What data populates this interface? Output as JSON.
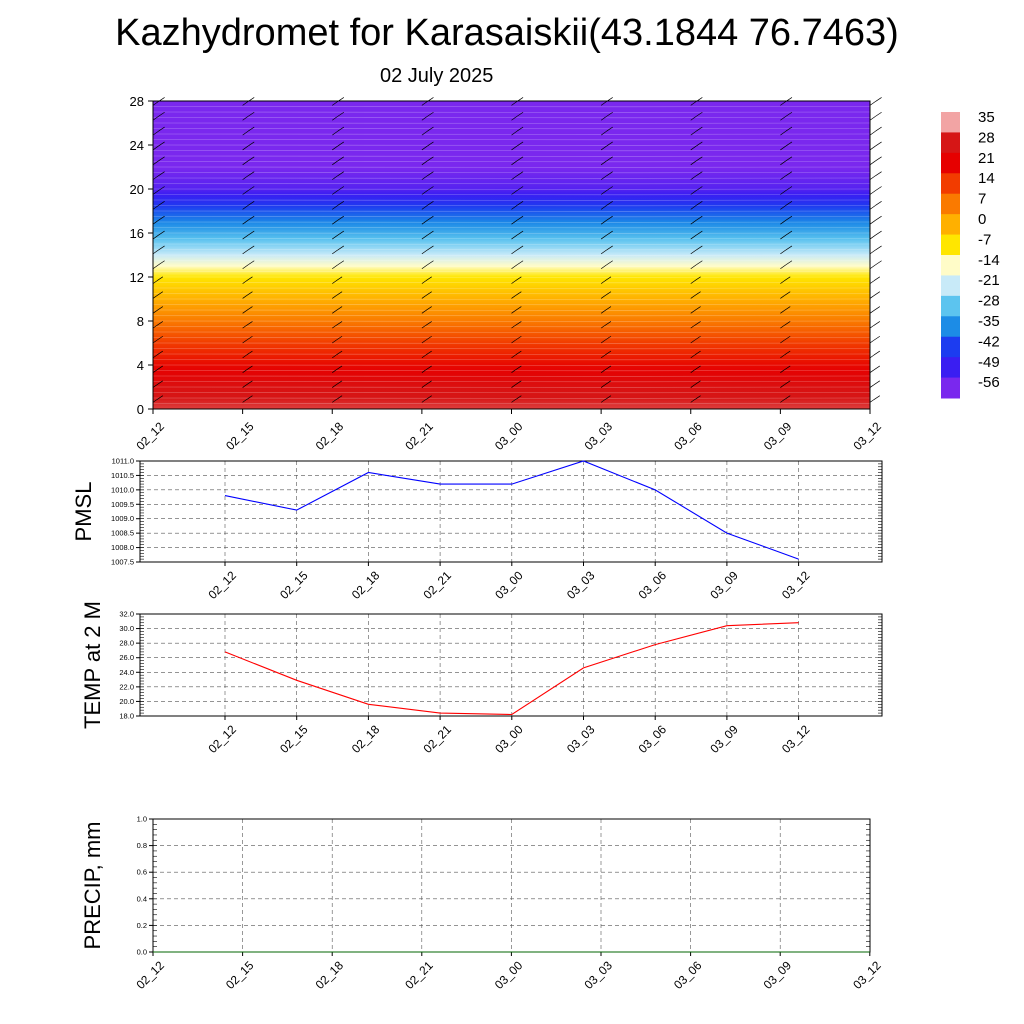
{
  "header": {
    "title": "Kazhydromet for Karasaiskii(43.1844 76.7463)",
    "subtitle": "02 July 2025"
  },
  "chart_data": [
    {
      "type": "heatmap",
      "title": "",
      "ylabel": "",
      "ylim": [
        0,
        28
      ],
      "yticks": [
        "0",
        "4",
        "8",
        "12",
        "16",
        "20",
        "24",
        "28"
      ],
      "x": [
        "02_12",
        "02_15",
        "02_18",
        "02_21",
        "03_00",
        "03_03",
        "03_06",
        "03_09",
        "03_12"
      ],
      "colorbar": {
        "labels": [
          "35",
          "28",
          "21",
          "14",
          "7",
          "0",
          "-7",
          "-14",
          "-21",
          "-28",
          "-35",
          "-42",
          "-49",
          "-56"
        ],
        "colors": [
          "#f2a4a4",
          "#d61616",
          "#e60000",
          "#f23c00",
          "#fa7a00",
          "#ffb000",
          "#ffe600",
          "#fffcc8",
          "#c8eaf8",
          "#5cc4ef",
          "#1c8ce6",
          "#1c3cf0",
          "#3a1ef2",
          "#7a28ee"
        ]
      },
      "temperature_by_height": {
        "heights": [
          0,
          2,
          4,
          6,
          8,
          10,
          12,
          13,
          14,
          16,
          18,
          20,
          22,
          24,
          28
        ],
        "values": [
          30,
          26,
          20,
          14,
          7,
          0,
          -7,
          -14,
          -21,
          -31,
          -40,
          -52,
          -56,
          -58,
          -60
        ]
      },
      "grid": false
    },
    {
      "type": "line",
      "ylabel": "PMSL",
      "ylim": [
        1007.5,
        1011.0
      ],
      "yticks": [
        "1007.5",
        "1008.0",
        "1008.5",
        "1009.0",
        "1009.5",
        "1010.0",
        "1010.5",
        "1011.0"
      ],
      "x": [
        "02_12",
        "02_15",
        "02_18",
        "02_21",
        "03_00",
        "03_03",
        "03_06",
        "03_09",
        "03_12"
      ],
      "series": [
        {
          "values": [
            1009.8,
            1009.3,
            1010.6,
            1010.2,
            1010.2,
            1011.0,
            1010.0,
            1008.5,
            1007.6
          ],
          "color": "#0000ff"
        }
      ],
      "grid": true
    },
    {
      "type": "line",
      "ylabel": "TEMP at 2 M",
      "ylim": [
        18.0,
        32.0
      ],
      "yticks": [
        "18.0",
        "20.0",
        "22.0",
        "24.0",
        "26.0",
        "28.0",
        "30.0",
        "32.0"
      ],
      "x": [
        "02_12",
        "02_15",
        "02_18",
        "02_21",
        "03_00",
        "03_03",
        "03_06",
        "03_09",
        "03_12"
      ],
      "series": [
        {
          "values": [
            26.8,
            22.9,
            19.6,
            18.4,
            18.2,
            24.6,
            27.8,
            30.4,
            30.8
          ],
          "color": "#ff0000"
        }
      ],
      "grid": true
    },
    {
      "type": "line",
      "ylabel": "PRECIP, mm",
      "ylim": [
        0.0,
        1.0
      ],
      "yticks": [
        "0.0",
        "0.2",
        "0.4",
        "0.6",
        "0.8",
        "1.0"
      ],
      "x": [
        "02_12",
        "02_15",
        "02_18",
        "02_21",
        "03_00",
        "03_03",
        "03_06",
        "03_09",
        "03_12"
      ],
      "series": [
        {
          "values": [
            0,
            0,
            0,
            0,
            0,
            0,
            0,
            0,
            0
          ],
          "color": "#006400"
        }
      ],
      "grid": true
    }
  ]
}
